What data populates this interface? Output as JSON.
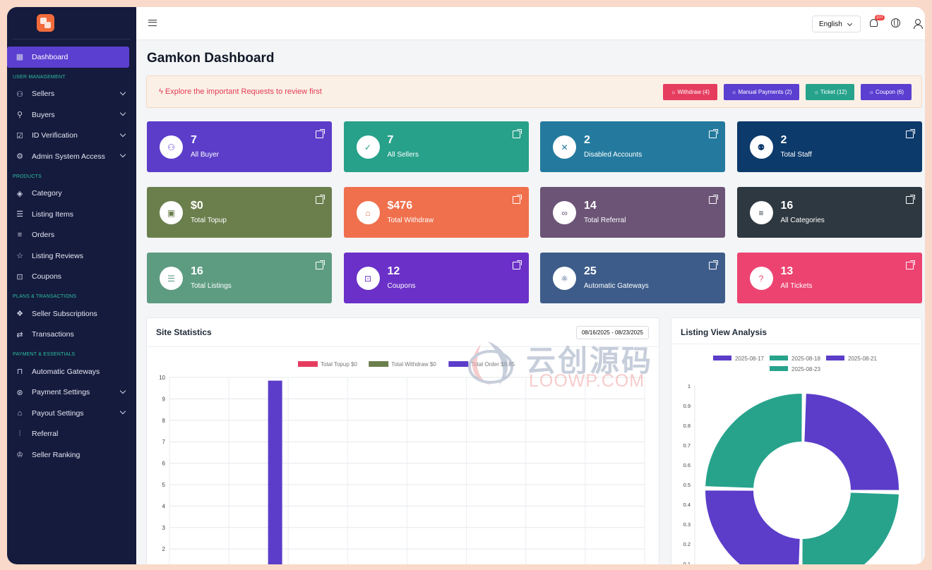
{
  "sidebar": {
    "items": [
      {
        "type": "item",
        "label": "Dashboard",
        "icon": "grid-icon",
        "active": true
      },
      {
        "type": "section",
        "label": "USER MANAGEMENT"
      },
      {
        "type": "item",
        "label": "Sellers",
        "icon": "users-icon",
        "chevron": true
      },
      {
        "type": "item",
        "label": "Buyers",
        "icon": "user-icon",
        "chevron": true
      },
      {
        "type": "item",
        "label": "ID Verification",
        "icon": "check-square-icon",
        "chevron": true
      },
      {
        "type": "item",
        "label": "Admin System Access",
        "icon": "user-cog-icon",
        "chevron": true
      },
      {
        "type": "section",
        "label": "PRODUCTS"
      },
      {
        "type": "item",
        "label": "Category",
        "icon": "diamond-icon"
      },
      {
        "type": "item",
        "label": "Listing Items",
        "icon": "list-icon"
      },
      {
        "type": "item",
        "label": "Orders",
        "icon": "orders-icon"
      },
      {
        "type": "item",
        "label": "Listing Reviews",
        "icon": "star-icon"
      },
      {
        "type": "item",
        "label": "Coupons",
        "icon": "gift-icon"
      },
      {
        "type": "section",
        "label": "PLANS & TRANSACTIONS"
      },
      {
        "type": "item",
        "label": "Seller Subscriptions",
        "icon": "subscription-icon"
      },
      {
        "type": "item",
        "label": "Transactions",
        "icon": "transactions-icon"
      },
      {
        "type": "section",
        "label": "PAYMENT & ESSENTIALS"
      },
      {
        "type": "item",
        "label": "Automatic Gateways",
        "icon": "gateway-icon"
      },
      {
        "type": "item",
        "label": "Payment Settings",
        "icon": "payment-icon",
        "chevron": true
      },
      {
        "type": "item",
        "label": "Payout Settings",
        "icon": "bank-icon",
        "chevron": true
      },
      {
        "type": "item",
        "label": "Referral",
        "icon": "referral-icon"
      },
      {
        "type": "item",
        "label": "Seller Ranking",
        "icon": "ranking-icon"
      }
    ]
  },
  "topbar": {
    "language": "English",
    "notification_count": "107"
  },
  "page": {
    "title": "Gamkon Dashboard"
  },
  "alert": {
    "text": "Explore the important Requests to review first",
    "buttons": [
      {
        "label": "Withdraw (4)",
        "color": "#e63d5f"
      },
      {
        "label": "Manual Payments (2)",
        "color": "#5b3fd1"
      },
      {
        "label": "Ticket (12)",
        "color": "#27a38c"
      },
      {
        "label": "Coupon (6)",
        "color": "#5b3fd1"
      }
    ]
  },
  "cards": [
    {
      "value": "7",
      "label": "All Buyer",
      "color": "#5b3dc9",
      "icon": "users-icon"
    },
    {
      "value": "7",
      "label": "All Sellers",
      "color": "#28a18a",
      "icon": "user-check-icon"
    },
    {
      "value": "2",
      "label": "Disabled Accounts",
      "color": "#247a9e",
      "icon": "user-x-icon"
    },
    {
      "value": "2",
      "label": "Total Staff",
      "color": "#0c3a6b",
      "icon": "staff-icon"
    },
    {
      "value": "$0",
      "label": "Total Topup",
      "color": "#6b7f4d",
      "icon": "wallet-icon"
    },
    {
      "value": "$476",
      "label": "Total Withdraw",
      "color": "#f0704d",
      "icon": "bank-icon"
    },
    {
      "value": "14",
      "label": "Total Referral",
      "color": "#6b5476",
      "icon": "link-icon"
    },
    {
      "value": "16",
      "label": "All Categories",
      "color": "#2e3840",
      "icon": "categories-icon"
    },
    {
      "value": "16",
      "label": "Total Listings",
      "color": "#5e9c82",
      "icon": "list-icon"
    },
    {
      "value": "12",
      "label": "Coupons",
      "color": "#6a30c7",
      "icon": "gift-icon"
    },
    {
      "value": "25",
      "label": "Automatic Gateways",
      "color": "#3d5c8a",
      "icon": "gateway-icon"
    },
    {
      "value": "13",
      "label": "All Tickets",
      "color": "#ec4370",
      "icon": "help-icon"
    }
  ],
  "site_statistics": {
    "title": "Site Statistics",
    "date_range": "08/16/2025 - 08/23/2025"
  },
  "listing_view": {
    "title": "Listing View Analysis"
  },
  "watermark": {
    "cn": "云创源码",
    "en": "LOOWP.COM"
  },
  "chart_data": [
    {
      "type": "bar",
      "legend": [
        {
          "name": "Total Topup $0",
          "color": "#e63d5f"
        },
        {
          "name": "Total Withdraw $0",
          "color": "#6b7f4d"
        },
        {
          "name": "Total Order $9.85",
          "color": "#5b3dc9"
        }
      ],
      "categories": [
        "",
        "",
        "",
        "",
        "",
        "",
        "",
        ""
      ],
      "series": [
        {
          "name": "Total Order $9.85",
          "color": "#5b3dc9",
          "values": [
            0,
            9.85,
            0,
            0,
            0,
            0,
            0,
            0
          ]
        }
      ],
      "yticks": [
        "10",
        "9",
        "8",
        "7",
        "6",
        "5",
        "4",
        "3",
        "2"
      ],
      "ylim": [
        0,
        10
      ],
      "grid": true
    },
    {
      "type": "pie",
      "legend": [
        {
          "name": "2025-08-17",
          "color": "#5b3dc9"
        },
        {
          "name": "2025-08-18",
          "color": "#27a38c"
        },
        {
          "name": "2025-08-21",
          "color": "#5b3dc9"
        },
        {
          "name": "2025-08-23",
          "color": "#27a38c"
        }
      ],
      "values": [
        1,
        1,
        1,
        1
      ],
      "yticks": [
        "1",
        "0.9",
        "0.8",
        "0.7",
        "0.6",
        "0.5",
        "0.4",
        "0.3",
        "0.2",
        "0.1"
      ]
    }
  ]
}
